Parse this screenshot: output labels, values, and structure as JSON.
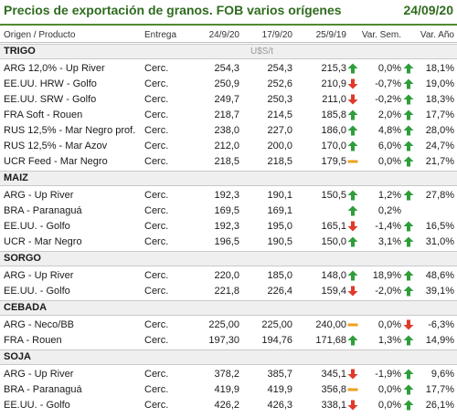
{
  "header": {
    "title": "Precios de exportación de granos. FOB varios orígenes",
    "date": "24/09/20"
  },
  "columns": {
    "origin": "Origen / Producto",
    "delivery": "Entrega",
    "d1": "24/9/20",
    "d2": "17/9/20",
    "d3": "25/9/19",
    "var_week": "Var. Sem.",
    "var_year": "Var. Año"
  },
  "colors": {
    "up": "#2e9e3a",
    "down": "#e03a2a",
    "flat": "#f0a020",
    "accent": "#2f6b1f"
  },
  "sections": [
    {
      "name": "TRIGO",
      "unit": "U$S/t",
      "rows": [
        {
          "name": "ARG 12,0% - Up River",
          "entrega": "Cerc.",
          "d1": "254,3",
          "d2": "254,3",
          "d3": "215,3",
          "d3_icon": "up-arrow-icon",
          "ws": "0,0%",
          "ws_icon": "up-arrow-icon",
          "ya": "18,1%"
        },
        {
          "name": "EE.UU. HRW - Golfo",
          "entrega": "Cerc.",
          "d1": "250,9",
          "d2": "252,6",
          "d3": "210,9",
          "d3_icon": "down-arrow-icon",
          "ws": "-0,7%",
          "ws_icon": "up-arrow-icon",
          "ya": "19,0%"
        },
        {
          "name": "EE.UU. SRW - Golfo",
          "entrega": "Cerc.",
          "d1": "249,7",
          "d2": "250,3",
          "d3": "211,0",
          "d3_icon": "down-arrow-icon",
          "ws": "-0,2%",
          "ws_icon": "up-arrow-icon",
          "ya": "18,3%"
        },
        {
          "name": "FRA Soft - Rouen",
          "entrega": "Cerc.",
          "d1": "218,7",
          "d2": "214,5",
          "d3": "185,8",
          "d3_icon": "up-arrow-icon",
          "ws": "2,0%",
          "ws_icon": "up-arrow-icon",
          "ya": "17,7%"
        },
        {
          "name": "RUS 12,5% - Mar Negro prof.",
          "entrega": "Cerc.",
          "d1": "238,0",
          "d2": "227,0",
          "d3": "186,0",
          "d3_icon": "up-arrow-icon",
          "ws": "4,8%",
          "ws_icon": "up-arrow-icon",
          "ya": "28,0%"
        },
        {
          "name": "RUS 12,5% - Mar Azov",
          "entrega": "Cerc.",
          "d1": "212,0",
          "d2": "200,0",
          "d3": "170,0",
          "d3_icon": "up-arrow-icon",
          "ws": "6,0%",
          "ws_icon": "up-arrow-icon",
          "ya": "24,7%"
        },
        {
          "name": "UCR Feed - Mar Negro",
          "entrega": "Cerc.",
          "d1": "218,5",
          "d2": "218,5",
          "d3": "179,5",
          "d3_icon": "flat-icon",
          "ws": "0,0%",
          "ws_icon": "up-arrow-icon",
          "ya": "21,7%"
        }
      ]
    },
    {
      "name": "MAIZ",
      "unit": "",
      "rows": [
        {
          "name": "ARG - Up River",
          "entrega": "Cerc.",
          "d1": "192,3",
          "d2": "190,1",
          "d3": "150,5",
          "d3_icon": "up-arrow-icon",
          "ws": "1,2%",
          "ws_icon": "up-arrow-icon",
          "ya": "27,8%"
        },
        {
          "name": "BRA - Paranaguá",
          "entrega": "Cerc.",
          "d1": "169,5",
          "d2": "169,1",
          "d3": "",
          "d3_icon": "up-arrow-icon",
          "ws": "0,2%",
          "ws_icon": "",
          "ya": ""
        },
        {
          "name": "EE.UU. - Golfo",
          "entrega": "Cerc.",
          "d1": "192,3",
          "d2": "195,0",
          "d3": "165,1",
          "d3_icon": "down-arrow-icon",
          "ws": "-1,4%",
          "ws_icon": "up-arrow-icon",
          "ya": "16,5%"
        },
        {
          "name": "UCR - Mar Negro",
          "entrega": "Cerc.",
          "d1": "196,5",
          "d2": "190,5",
          "d3": "150,0",
          "d3_icon": "up-arrow-icon",
          "ws": "3,1%",
          "ws_icon": "up-arrow-icon",
          "ya": "31,0%"
        }
      ]
    },
    {
      "name": "SORGO",
      "unit": "",
      "rows": [
        {
          "name": "ARG - Up River",
          "entrega": "Cerc.",
          "d1": "220,0",
          "d2": "185,0",
          "d3": "148,0",
          "d3_icon": "up-arrow-icon",
          "ws": "18,9%",
          "ws_icon": "up-arrow-icon",
          "ya": "48,6%"
        },
        {
          "name": "EE.UU. - Golfo",
          "entrega": "Cerc.",
          "d1": "221,8",
          "d2": "226,4",
          "d3": "159,4",
          "d3_icon": "down-arrow-icon",
          "ws": "-2,0%",
          "ws_icon": "up-arrow-icon",
          "ya": "39,1%"
        }
      ]
    },
    {
      "name": "CEBADA",
      "unit": "",
      "rows": [
        {
          "name": "ARG - Neco/BB",
          "entrega": "Cerc.",
          "d1": "225,00",
          "d2": "225,00",
          "d3": "240,00",
          "d3_icon": "flat-icon",
          "ws": "0,0%",
          "ws_icon": "down-arrow-icon",
          "ya": "-6,3%"
        },
        {
          "name": "FRA - Rouen",
          "entrega": "Cerc.",
          "d1": "197,30",
          "d2": "194,76",
          "d3": "171,68",
          "d3_icon": "up-arrow-icon",
          "ws": "1,3%",
          "ws_icon": "up-arrow-icon",
          "ya": "14,9%"
        }
      ]
    },
    {
      "name": "SOJA",
      "unit": "",
      "rows": [
        {
          "name": "ARG - Up River",
          "entrega": "Cerc.",
          "d1": "378,2",
          "d2": "385,7",
          "d3": "345,1",
          "d3_icon": "down-arrow-icon",
          "ws": "-1,9%",
          "ws_icon": "up-arrow-icon",
          "ya": "9,6%"
        },
        {
          "name": "BRA - Paranaguá",
          "entrega": "Cerc.",
          "d1": "419,9",
          "d2": "419,9",
          "d3": "356,8",
          "d3_icon": "flat-icon",
          "ws": "0,0%",
          "ws_icon": "up-arrow-icon",
          "ya": "17,7%"
        },
        {
          "name": "EE.UU. - Golfo",
          "entrega": "Cerc.",
          "d1": "426,2",
          "d2": "426,3",
          "d3": "338,1",
          "d3_icon": "down-arrow-icon",
          "ws": "0,0%",
          "ws_icon": "up-arrow-icon",
          "ya": "26,1%"
        }
      ]
    }
  ]
}
